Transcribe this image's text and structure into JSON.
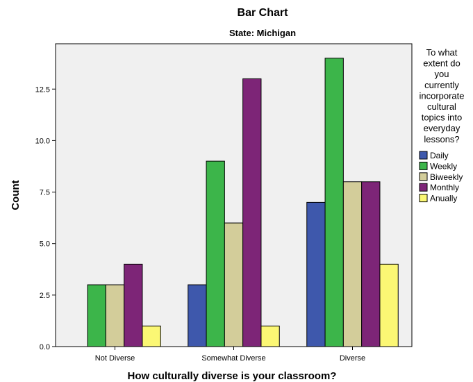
{
  "chart_data": {
    "type": "bar",
    "title": "Bar Chart",
    "subtitle": "State: Michigan",
    "xlabel": "How culturally diverse is your classroom?",
    "ylabel": "Count",
    "categories": [
      "Not Diverse",
      "Somewhat Diverse",
      "Diverse"
    ],
    "ylim": [
      0,
      14.7
    ],
    "yticks": [
      0.0,
      2.5,
      5.0,
      7.5,
      10.0,
      12.5
    ],
    "ytick_labels": [
      "0.0",
      "2.5",
      "5.0",
      "7.5",
      "10.0",
      "12.5"
    ],
    "legend": {
      "title_lines": [
        "To what",
        "extent do",
        "you",
        "currently",
        "incorporate",
        "cultural",
        "topics into",
        "everyday",
        "lessons?"
      ],
      "placement": "right"
    },
    "series": [
      {
        "name": "Daily",
        "color": "#3e58ac",
        "values": [
          0,
          3,
          7
        ]
      },
      {
        "name": "Weekly",
        "color": "#3cb54a",
        "values": [
          3,
          9,
          14
        ]
      },
      {
        "name": "Biweekly",
        "color": "#d3cd9a",
        "values": [
          3,
          6,
          8
        ]
      },
      {
        "name": "Monthly",
        "color": "#7d2577",
        "values": [
          4,
          13,
          8
        ]
      },
      {
        "name": "Anually",
        "color": "#fbf774",
        "values": [
          1,
          1,
          4
        ]
      }
    ],
    "plot_background": "#f0f0f0"
  }
}
